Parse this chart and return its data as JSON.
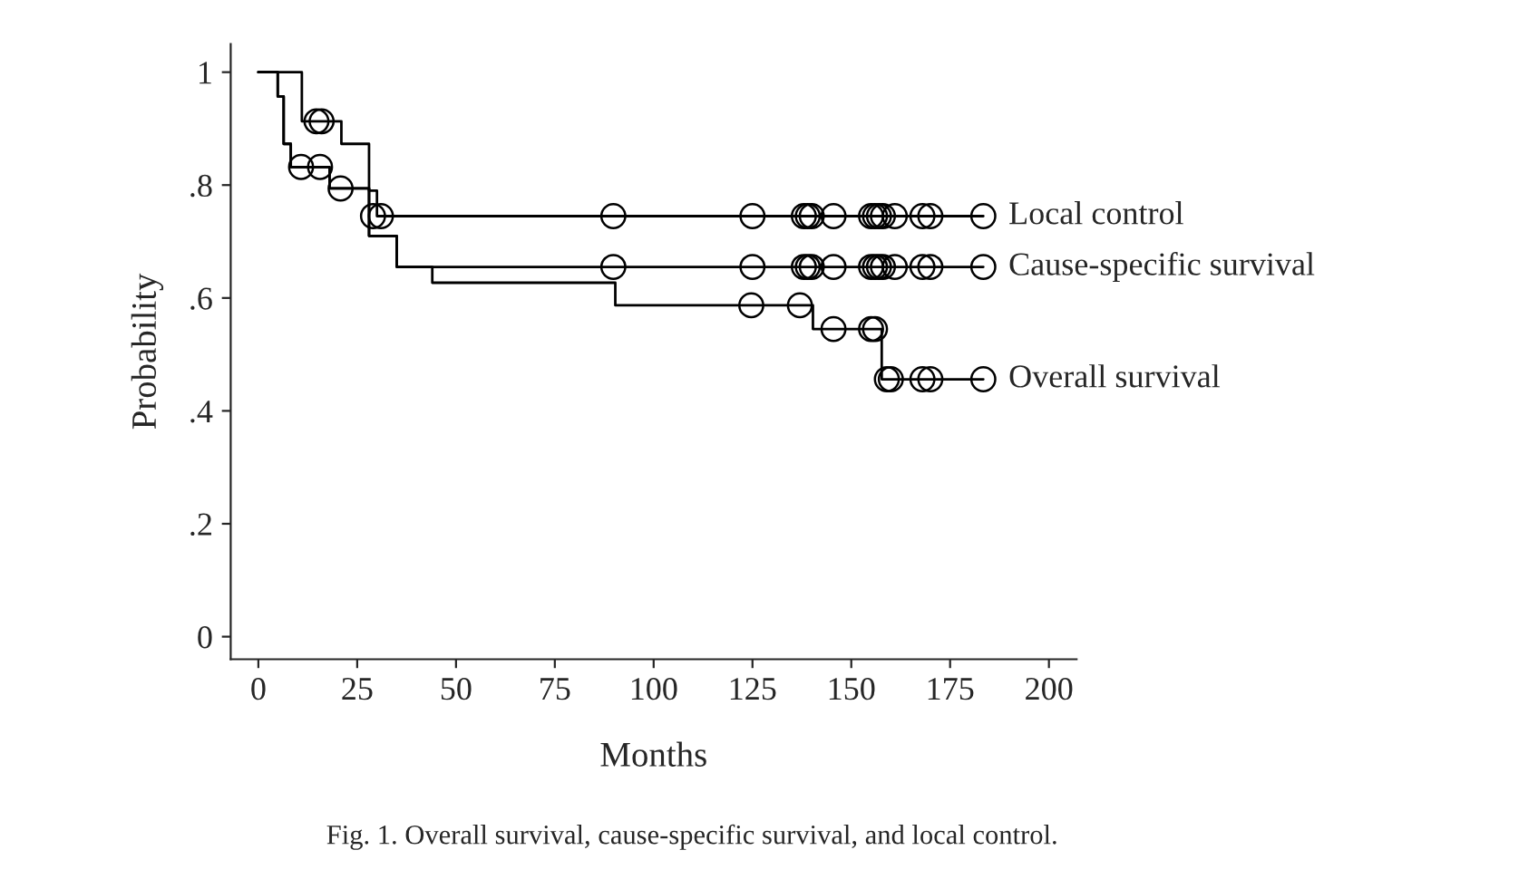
{
  "chart_data": {
    "type": "step",
    "xlabel": "Months",
    "ylabel": "Probability",
    "annotations": [
      "Fig. 1. Overall survival, cause-specific survival, and local control."
    ],
    "xlim": [
      -7,
      207
    ],
    "ylim": [
      -0.04,
      1.05
    ],
    "xticks": [
      0,
      25,
      50,
      75,
      100,
      125,
      150,
      175,
      200
    ],
    "yticks": [
      0,
      {
        "value": 0.2,
        "label": ".2"
      },
      {
        "value": 0.4,
        "label": ".4"
      },
      {
        "value": 0.6,
        "label": ".6"
      },
      {
        "value": 0.8,
        "label": ".8"
      },
      1
    ],
    "grid": false,
    "legend": false,
    "marker": "none",
    "series": [
      {
        "name": "Local control",
        "color": "#000000",
        "x": [
          0,
          11,
          21,
          28,
          30,
          183.4
        ],
        "values": [
          1,
          0.913,
          0.873,
          0.79,
          0.745,
          0.745
        ]
      },
      {
        "name": "Cause-specific survival",
        "color": "#000000",
        "x": [
          0,
          4.9,
          6.4,
          8.2,
          18,
          28,
          35,
          183.4
        ],
        "values": [
          1,
          0.957,
          0.873,
          0.832,
          0.794,
          0.71,
          0.655,
          0.655
        ]
      },
      {
        "name": "Overall survival",
        "color": "#000000",
        "x": [
          0,
          4.9,
          6.4,
          8.2,
          18,
          28,
          35,
          44,
          90.3,
          140.3,
          157.7,
          183.4
        ],
        "values": [
          1,
          0.957,
          0.873,
          0.832,
          0.794,
          0.71,
          0.655,
          0.627,
          0.587,
          0.545,
          0.456,
          0.456
        ]
      },
      {
        "type": "scatter",
        "marker": "circle",
        "color": "#000000",
        "x": [
          14.7,
          16,
          29,
          31,
          89.8,
          125,
          138,
          139,
          140,
          145.5,
          155,
          156,
          157,
          158,
          161,
          168,
          170,
          183.4
        ],
        "values": [
          0.913,
          0.913,
          0.745,
          0.745,
          0.745,
          0.745,
          0.745,
          0.745,
          0.745,
          0.745,
          0.745,
          0.745,
          0.745,
          0.745,
          0.745,
          0.745,
          0.745,
          0.745
        ]
      },
      {
        "type": "scatter",
        "marker": "circle",
        "color": "#000000",
        "x": [
          10.8,
          15.6,
          20.8,
          89.8,
          125,
          138,
          139,
          140,
          145.5,
          155,
          156,
          157,
          158,
          161,
          168,
          170,
          183.4
        ],
        "values": [
          0.832,
          0.832,
          0.794,
          0.655,
          0.655,
          0.655,
          0.655,
          0.655,
          0.655,
          0.655,
          0.655,
          0.655,
          0.655,
          0.655,
          0.655,
          0.655,
          0.655
        ]
      },
      {
        "type": "scatter",
        "marker": "circle",
        "color": "#000000",
        "x": [
          124.7,
          137,
          145.5,
          155,
          156,
          159,
          160,
          168,
          170,
          183.4
        ],
        "values": [
          0.587,
          0.587,
          0.545,
          0.545,
          0.545,
          0.456,
          0.456,
          0.456,
          0.456,
          0.456
        ]
      }
    ]
  }
}
